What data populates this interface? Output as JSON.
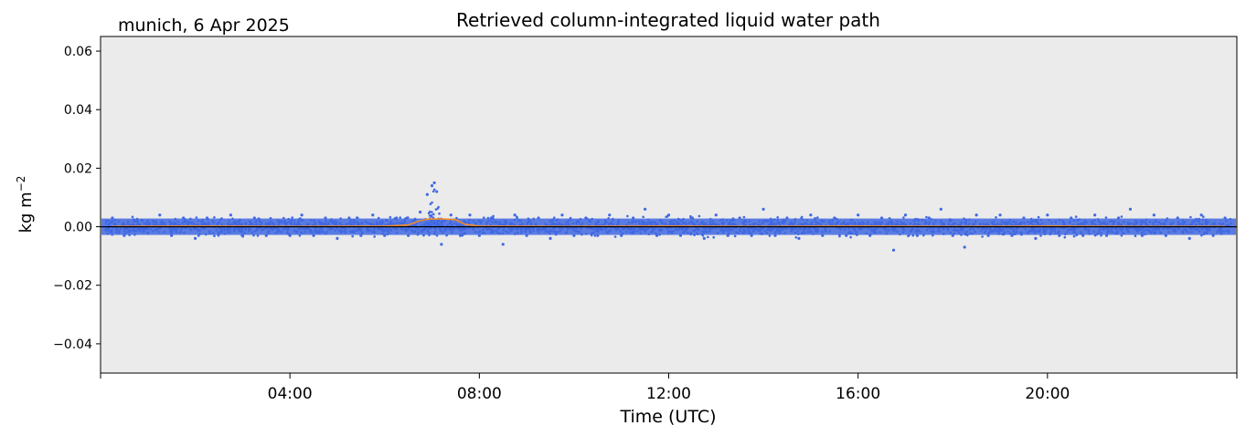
{
  "chart_data": {
    "type": "scatter",
    "title": "Retrieved column-integrated liquid water path",
    "subtitle": "munich, 6 Apr 2025",
    "xlabel": "Time (UTC)",
    "ylabel": "kg m",
    "ylabel_superscript": "−2",
    "x_unit": "hours UTC",
    "xlim": [
      0,
      24
    ],
    "ylim": [
      -0.05,
      0.065
    ],
    "x_ticks": [
      {
        "value": 4,
        "label": "04:00"
      },
      {
        "value": 8,
        "label": "08:00"
      },
      {
        "value": 12,
        "label": "12:00"
      },
      {
        "value": 16,
        "label": "16:00"
      },
      {
        "value": 20,
        "label": "20:00"
      }
    ],
    "y_ticks": [
      {
        "value": 0.06,
        "label": "0.06"
      },
      {
        "value": 0.04,
        "label": "0.04"
      },
      {
        "value": 0.02,
        "label": "0.02"
      },
      {
        "value": 0.0,
        "label": "0.00"
      },
      {
        "value": -0.02,
        "label": "−0.02"
      },
      {
        "value": -0.04,
        "label": "−0.04"
      }
    ],
    "grid": false,
    "background_color": "#ebebeb",
    "series": [
      {
        "kind": "scatter",
        "color": "#4169e1",
        "points": [
          [
            0.25,
            0.003
          ],
          [
            0.5,
            -0.003
          ],
          [
            0.75,
            0.002
          ],
          [
            1.0,
            -0.002
          ],
          [
            1.25,
            0.004
          ],
          [
            1.5,
            -0.003
          ],
          [
            1.75,
            0.003
          ],
          [
            2.0,
            -0.004
          ],
          [
            2.25,
            0.003
          ],
          [
            2.5,
            -0.002
          ],
          [
            2.75,
            0.004
          ],
          [
            3.0,
            -0.003
          ],
          [
            3.25,
            0.003
          ],
          [
            3.5,
            -0.003
          ],
          [
            3.75,
            0.002
          ],
          [
            4.0,
            -0.003
          ],
          [
            4.25,
            0.004
          ],
          [
            4.5,
            -0.003
          ],
          [
            4.75,
            0.003
          ],
          [
            5.0,
            -0.004
          ],
          [
            5.25,
            0.003
          ],
          [
            5.5,
            -0.003
          ],
          [
            5.75,
            0.004
          ],
          [
            6.0,
            -0.003
          ],
          [
            6.25,
            0.003
          ],
          [
            6.5,
            -0.003
          ],
          [
            6.75,
            0.005
          ],
          [
            6.9,
            0.011
          ],
          [
            7.0,
            0.014
          ],
          [
            7.05,
            0.015
          ],
          [
            7.1,
            0.012
          ],
          [
            7.2,
            -0.006
          ],
          [
            7.4,
            0.004
          ],
          [
            7.6,
            -0.003
          ],
          [
            7.8,
            0.004
          ],
          [
            8.0,
            -0.003
          ],
          [
            8.25,
            0.003
          ],
          [
            8.5,
            -0.006
          ],
          [
            8.75,
            0.004
          ],
          [
            9.0,
            -0.003
          ],
          [
            9.25,
            0.003
          ],
          [
            9.5,
            -0.004
          ],
          [
            9.75,
            0.004
          ],
          [
            10.0,
            -0.003
          ],
          [
            10.25,
            0.003
          ],
          [
            10.5,
            -0.003
          ],
          [
            10.75,
            0.004
          ],
          [
            11.0,
            -0.003
          ],
          [
            11.25,
            0.003
          ],
          [
            11.5,
            0.006
          ],
          [
            11.75,
            -0.003
          ],
          [
            12.0,
            0.004
          ],
          [
            12.25,
            -0.003
          ],
          [
            12.5,
            0.003
          ],
          [
            12.75,
            -0.004
          ],
          [
            13.0,
            0.004
          ],
          [
            13.25,
            -0.003
          ],
          [
            13.5,
            0.003
          ],
          [
            13.75,
            -0.003
          ],
          [
            14.0,
            0.006
          ],
          [
            14.25,
            -0.003
          ],
          [
            14.5,
            0.003
          ],
          [
            14.75,
            -0.004
          ],
          [
            15.0,
            0.004
          ],
          [
            15.25,
            -0.003
          ],
          [
            15.5,
            0.003
          ],
          [
            15.75,
            -0.003
          ],
          [
            16.0,
            0.004
          ],
          [
            16.25,
            -0.003
          ],
          [
            16.5,
            0.003
          ],
          [
            16.75,
            -0.008
          ],
          [
            17.0,
            0.004
          ],
          [
            17.25,
            -0.003
          ],
          [
            17.5,
            0.003
          ],
          [
            17.75,
            0.006
          ],
          [
            18.0,
            -0.003
          ],
          [
            18.25,
            -0.007
          ],
          [
            18.5,
            0.004
          ],
          [
            18.75,
            -0.003
          ],
          [
            19.0,
            0.004
          ],
          [
            19.25,
            -0.003
          ],
          [
            19.5,
            0.003
          ],
          [
            19.75,
            -0.004
          ],
          [
            20.0,
            0.004
          ],
          [
            20.25,
            -0.003
          ],
          [
            20.5,
            0.003
          ],
          [
            20.75,
            -0.003
          ],
          [
            21.0,
            0.004
          ],
          [
            21.25,
            -0.003
          ],
          [
            21.5,
            0.003
          ],
          [
            21.75,
            0.006
          ],
          [
            22.0,
            -0.003
          ],
          [
            22.25,
            0.004
          ],
          [
            22.5,
            -0.003
          ],
          [
            22.75,
            0.003
          ],
          [
            23.0,
            -0.004
          ],
          [
            23.25,
            0.004
          ],
          [
            23.5,
            -0.003
          ],
          [
            23.75,
            0.003
          ]
        ]
      },
      {
        "kind": "line",
        "color": "#ff8c1a",
        "points": [
          [
            0.25,
            0.0001
          ],
          [
            2.0,
            0.0002
          ],
          [
            4.0,
            0.0001
          ],
          [
            6.0,
            0.0002
          ],
          [
            6.5,
            0.0006
          ],
          [
            6.7,
            0.0018
          ],
          [
            6.9,
            0.0026
          ],
          [
            7.2,
            0.0027
          ],
          [
            7.5,
            0.0024
          ],
          [
            7.7,
            0.0008
          ],
          [
            8.0,
            0.0002
          ],
          [
            10.0,
            0.0001
          ],
          [
            12.0,
            0.0002
          ],
          [
            14.0,
            0.0001
          ],
          [
            16.0,
            0.0002
          ],
          [
            18.0,
            0.0001
          ],
          [
            20.0,
            0.0002
          ],
          [
            22.0,
            0.0001
          ],
          [
            23.75,
            0.0001
          ]
        ]
      },
      {
        "kind": "line",
        "color": "#000000",
        "points": [
          [
            0.0,
            0.0
          ],
          [
            0.25,
            0.0
          ],
          [
            23.75,
            0.0
          ],
          [
            24.0,
            0.0
          ]
        ]
      }
    ]
  }
}
